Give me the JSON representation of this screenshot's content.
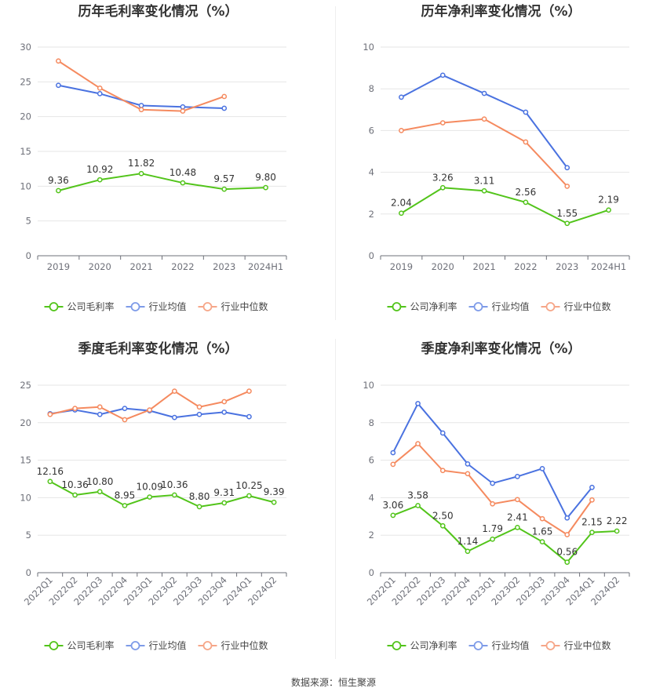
{
  "colors": {
    "company": "#52c41a",
    "avg": "#4a72e0",
    "median": "#f58a5f",
    "grid": "#e6e6e6",
    "axis": "#6e7079"
  },
  "source": "数据来源：恒生聚源",
  "chart_data": [
    {
      "type": "line",
      "title": "历年毛利率变化情况（%）",
      "categories": [
        "2019",
        "2020",
        "2021",
        "2022",
        "2023",
        "2024H1"
      ],
      "ylim": [
        0,
        30
      ],
      "yticks": [
        0,
        5,
        10,
        15,
        20,
        25,
        30
      ],
      "rotate_x": false,
      "legend_position": "bottom",
      "series": [
        {
          "name": "公司毛利率",
          "role": "company",
          "labels": true,
          "values": [
            9.36,
            10.92,
            11.82,
            10.48,
            9.57,
            9.8
          ]
        },
        {
          "name": "行业均值",
          "role": "avg",
          "labels": false,
          "values": [
            24.5,
            23.3,
            21.6,
            21.4,
            21.2,
            null
          ]
        },
        {
          "name": "行业中位数",
          "role": "median",
          "labels": false,
          "values": [
            28.0,
            24.1,
            21.0,
            20.8,
            22.9,
            null
          ]
        }
      ]
    },
    {
      "type": "line",
      "title": "历年净利率变化情况（%）",
      "categories": [
        "2019",
        "2020",
        "2021",
        "2022",
        "2023",
        "2024H1"
      ],
      "ylim": [
        0,
        10
      ],
      "yticks": [
        0,
        2,
        4,
        6,
        8,
        10
      ],
      "rotate_x": false,
      "legend_position": "bottom",
      "series": [
        {
          "name": "公司净利率",
          "role": "company",
          "labels": true,
          "values": [
            2.04,
            3.26,
            3.11,
            2.56,
            1.55,
            2.19
          ]
        },
        {
          "name": "行业均值",
          "role": "avg",
          "labels": false,
          "values": [
            7.6,
            8.65,
            7.78,
            6.88,
            4.22,
            null
          ]
        },
        {
          "name": "行业中位数",
          "role": "median",
          "labels": false,
          "values": [
            6.0,
            6.37,
            6.55,
            5.45,
            3.33,
            null
          ]
        }
      ]
    },
    {
      "type": "line",
      "title": "季度毛利率变化情况（%）",
      "categories": [
        "2022Q1",
        "2022Q2",
        "2022Q3",
        "2022Q4",
        "2023Q1",
        "2023Q2",
        "2023Q3",
        "2023Q4",
        "2024Q1",
        "2024Q2"
      ],
      "ylim": [
        0,
        25
      ],
      "yticks": [
        0,
        5,
        10,
        15,
        20,
        25
      ],
      "rotate_x": true,
      "legend_position": "bottom",
      "series": [
        {
          "name": "公司毛利率",
          "role": "company",
          "labels": true,
          "values": [
            12.16,
            10.36,
            10.8,
            8.95,
            10.09,
            10.36,
            8.8,
            9.31,
            10.25,
            9.39
          ]
        },
        {
          "name": "行业均值",
          "role": "avg",
          "labels": false,
          "values": [
            21.2,
            21.7,
            21.1,
            21.9,
            21.6,
            20.7,
            21.1,
            21.4,
            20.8,
            null
          ]
        },
        {
          "name": "行业中位数",
          "role": "median",
          "labels": false,
          "values": [
            21.1,
            21.9,
            22.1,
            20.4,
            21.7,
            24.2,
            22.1,
            22.8,
            24.2,
            null
          ]
        }
      ]
    },
    {
      "type": "line",
      "title": "季度净利率变化情况（%）",
      "categories": [
        "2022Q1",
        "2022Q2",
        "2022Q3",
        "2022Q4",
        "2023Q1",
        "2023Q2",
        "2023Q3",
        "2023Q4",
        "2024Q1",
        "2024Q2"
      ],
      "ylim": [
        0,
        10
      ],
      "yticks": [
        0,
        2,
        4,
        6,
        8,
        10
      ],
      "rotate_x": true,
      "legend_position": "bottom",
      "series": [
        {
          "name": "公司净利率",
          "role": "company",
          "labels": true,
          "values": [
            3.06,
            3.58,
            2.5,
            1.14,
            1.79,
            2.41,
            1.65,
            0.56,
            2.15,
            2.22
          ]
        },
        {
          "name": "行业均值",
          "role": "avg",
          "labels": false,
          "values": [
            6.4,
            9.02,
            7.45,
            5.8,
            4.77,
            5.13,
            5.55,
            2.92,
            4.55,
            null
          ]
        },
        {
          "name": "行业中位数",
          "role": "median",
          "labels": false,
          "values": [
            5.78,
            6.88,
            5.45,
            5.28,
            3.67,
            3.9,
            2.88,
            2.03,
            3.88,
            null
          ]
        }
      ]
    }
  ]
}
